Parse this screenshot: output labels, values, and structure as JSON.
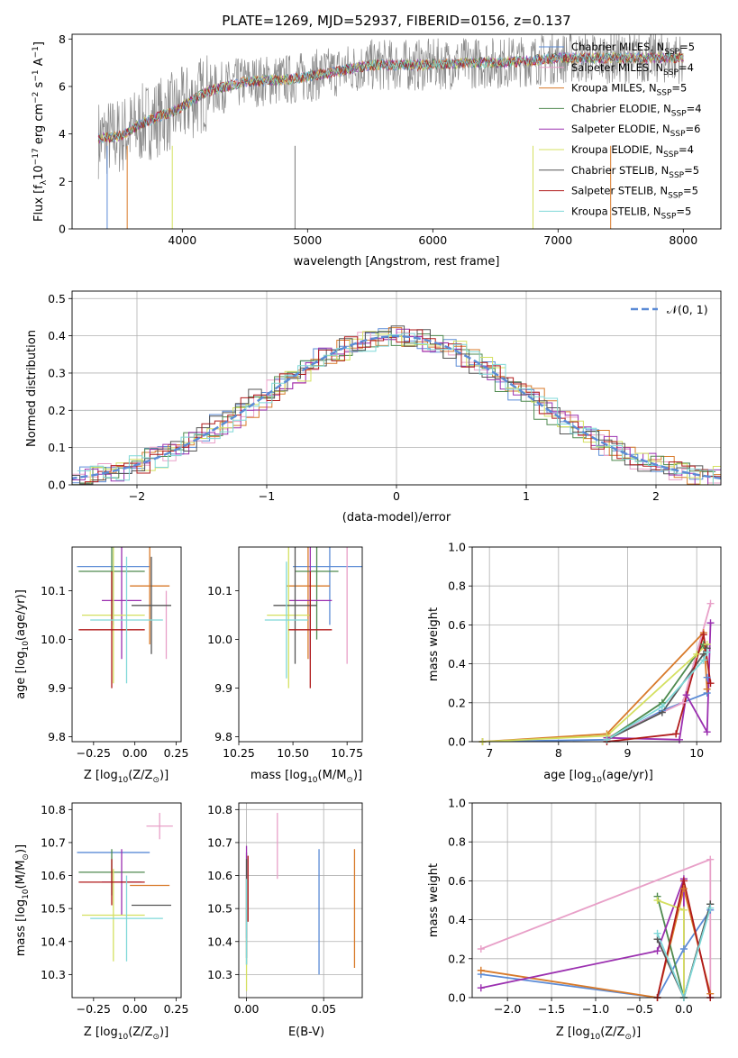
{
  "figure_title": "PLATE=1269, MJD=52937, FIBERID=0156, z=0.137",
  "legend_series": [
    {
      "name": "Chabrier MILES, N",
      "sub": "SSP",
      "tail": "=5",
      "color": "#5b8bd6"
    },
    {
      "name": "Salpeter MILES, N",
      "sub": "SSP",
      "tail": "=4",
      "color": "#e8a0c8"
    },
    {
      "name": "Kroupa MILES, N",
      "sub": "SSP",
      "tail": "=5",
      "color": "#d87a2a"
    },
    {
      "name": "Chabrier ELODIE, N",
      "sub": "SSP",
      "tail": "=4",
      "color": "#4f8a4f"
    },
    {
      "name": "Salpeter ELODIE, N",
      "sub": "SSP",
      "tail": "=6",
      "color": "#9b30b0"
    },
    {
      "name": "Kroupa ELODIE, N",
      "sub": "SSP",
      "tail": "=4",
      "color": "#d4e060"
    },
    {
      "name": "Chabrier STELIB, N",
      "sub": "SSP",
      "tail": "=5",
      "color": "#555555"
    },
    {
      "name": "Salpeter STELIB, N",
      "sub": "SSP",
      "tail": "=5",
      "color": "#b01a1a"
    },
    {
      "name": "Kroupa STELIB, N",
      "sub": "SSP",
      "tail": "=5",
      "color": "#7fd8d8"
    }
  ],
  "chart_data": [
    {
      "id": "spectrum",
      "type": "line",
      "xlabel": "wavelength [Angstrom, rest frame]",
      "ylabel": "Flux [f",
      "ylabel_sub": "λ",
      "ylabel_rest": "10",
      "ylabel_sup1": "−17",
      "ylabel_mid": " erg cm",
      "ylabel_sup2": "−2",
      "ylabel_mid2": " s",
      "ylabel_sup3": "−1",
      "ylabel_end": " A",
      "ylabel_sup4": "−1",
      "ylabel_close": "]",
      "xlim": [
        3120,
        8300
      ],
      "ylim": [
        0,
        8.2
      ],
      "xticks": [
        "4000",
        "5000",
        "6000",
        "7000",
        "8000"
      ],
      "xtick_values": [
        4000,
        5000,
        6000,
        7000,
        8000
      ],
      "yticks": [
        "0",
        "2",
        "4",
        "6",
        "8"
      ],
      "ytick_values": [
        0,
        2,
        4,
        6,
        8
      ],
      "series_outline": {
        "x": [
          3330,
          3500,
          3700,
          3950,
          4200,
          4500,
          4860,
          5200,
          5500,
          5900,
          6300,
          6560,
          7000,
          7400,
          7800,
          8000
        ],
        "y": [
          3.8,
          3.9,
          4.5,
          5.0,
          5.8,
          6.2,
          6.3,
          6.6,
          6.9,
          6.9,
          7.0,
          7.0,
          7.2,
          7.2,
          7.2,
          7.2
        ]
      }
    },
    {
      "id": "residuals",
      "type": "line",
      "xlabel": "(data-model)/error",
      "ylabel": "Normed distribution",
      "legend": "𝒩(0, 1)",
      "xlim": [
        -2.5,
        2.5
      ],
      "ylim": [
        0,
        0.52
      ],
      "xticks": [
        "−2",
        "−1",
        "0",
        "1",
        "2"
      ],
      "xtick_values": [
        -2,
        -1,
        0,
        1,
        2
      ],
      "yticks": [
        "0.0",
        "0.1",
        "0.2",
        "0.3",
        "0.4",
        "0.5"
      ],
      "ytick_values": [
        0,
        0.1,
        0.2,
        0.3,
        0.4,
        0.5
      ],
      "grid": true,
      "gaussian": {
        "mean": 0,
        "sigma": 1
      }
    },
    {
      "id": "age-vs-Z",
      "type": "scatter",
      "xlabel": "Z [log",
      "xlabel_sub": "10",
      "xlabel_rest": "(Z/Z",
      "xlabel_sub2": "⊙",
      "xlabel_end": ")]",
      "ylabel": "age  [log",
      "ylabel_sub": "10",
      "ylabel_rest": "(age/yr)]",
      "xlim": [
        -0.38,
        0.28
      ],
      "ylim": [
        9.79,
        10.19
      ],
      "xticks": [
        "−0.25",
        "0.00",
        "0.25"
      ],
      "xtick_values": [
        -0.25,
        0,
        0.25
      ],
      "yticks": [
        "9.8",
        "9.9",
        "10.0",
        "10.1"
      ],
      "ytick_values": [
        9.8,
        9.9,
        10.0,
        10.1
      ],
      "points": [
        {
          "x": -0.13,
          "y": 10.15,
          "xerr": 0.22,
          "yerr": 0.12,
          "color": "#5b8bd6"
        },
        {
          "x": 0.19,
          "y": 10.03,
          "xerr": 0.0,
          "yerr": 0.07,
          "color": "#e8a0c8"
        },
        {
          "x": 0.09,
          "y": 10.11,
          "xerr": 0.12,
          "yerr": 0.12,
          "color": "#d87a2a"
        },
        {
          "x": -0.14,
          "y": 10.14,
          "xerr": 0.2,
          "yerr": 0.1,
          "color": "#4f8a4f"
        },
        {
          "x": -0.08,
          "y": 10.08,
          "xerr": 0.12,
          "yerr": 0.12,
          "color": "#9b30b0"
        },
        {
          "x": -0.13,
          "y": 10.05,
          "xerr": 0.19,
          "yerr": 0.14,
          "color": "#d4e060"
        },
        {
          "x": 0.1,
          "y": 10.07,
          "xerr": 0.12,
          "yerr": 0.1,
          "color": "#555555"
        },
        {
          "x": -0.14,
          "y": 10.02,
          "xerr": 0.2,
          "yerr": 0.12,
          "color": "#b01a1a"
        },
        {
          "x": -0.05,
          "y": 10.04,
          "xerr": 0.22,
          "yerr": 0.13,
          "color": "#7fd8d8"
        }
      ]
    },
    {
      "id": "age-vs-mass",
      "type": "scatter",
      "xlabel": "mass [log",
      "xlabel_sub": "10",
      "xlabel_rest": "(M/M",
      "xlabel_sub2": "⊙",
      "xlabel_end": ")]",
      "xlim": [
        10.25,
        10.82
      ],
      "ylim": [
        9.79,
        10.19
      ],
      "xticks": [
        "10.25",
        "10.50",
        "10.75"
      ],
      "xtick_values": [
        10.25,
        10.5,
        10.75
      ],
      "yticks": [
        "9.8",
        "9.9",
        "10.0",
        "10.1"
      ],
      "ytick_values": [
        9.8,
        9.9,
        10.0,
        10.1
      ],
      "points": [
        {
          "x": 10.67,
          "y": 10.15,
          "xerr": 0.17,
          "yerr": 0.12,
          "color": "#5b8bd6"
        },
        {
          "x": 10.75,
          "y": 10.1,
          "xerr": 0.0,
          "yerr": 0.15,
          "color": "#e8a0c8"
        },
        {
          "x": 10.57,
          "y": 10.11,
          "xerr": 0.1,
          "yerr": 0.15,
          "color": "#d87a2a"
        },
        {
          "x": 10.61,
          "y": 10.14,
          "xerr": 0.1,
          "yerr": 0.14,
          "color": "#4f8a4f"
        },
        {
          "x": 10.58,
          "y": 10.08,
          "xerr": 0.1,
          "yerr": 0.12,
          "color": "#9b30b0"
        },
        {
          "x": 10.48,
          "y": 10.05,
          "xerr": 0.1,
          "yerr": 0.15,
          "color": "#d4e060"
        },
        {
          "x": 10.51,
          "y": 10.07,
          "xerr": 0.1,
          "yerr": 0.12,
          "color": "#555555"
        },
        {
          "x": 10.58,
          "y": 10.02,
          "xerr": 0.1,
          "yerr": 0.12,
          "color": "#b01a1a"
        },
        {
          "x": 10.47,
          "y": 10.04,
          "xerr": 0.1,
          "yerr": 0.12,
          "color": "#7fd8d8"
        }
      ]
    },
    {
      "id": "massweight-vs-age",
      "type": "line",
      "xlabel": "age  [log",
      "xlabel_sub": "10",
      "xlabel_rest": "(age/yr)]",
      "ylabel": "mass weight",
      "xlim": [
        6.75,
        10.35
      ],
      "ylim": [
        0,
        1.0
      ],
      "xticks": [
        "7",
        "8",
        "9",
        "10"
      ],
      "xtick_values": [
        7,
        8,
        9,
        10
      ],
      "yticks": [
        "0.0",
        "0.2",
        "0.4",
        "0.6",
        "0.8",
        "1.0"
      ],
      "ytick_values": [
        0,
        0.2,
        0.4,
        0.6,
        0.8,
        1.0
      ],
      "grid": true,
      "series": [
        {
          "color": "#5b8bd6",
          "x": [
            6.9,
            8.7,
            9.5,
            10.15,
            10.15
          ],
          "y": [
            0.0,
            0.01,
            0.16,
            0.25,
            0.33
          ]
        },
        {
          "color": "#e8a0c8",
          "x": [
            8.7,
            9.8,
            10.2
          ],
          "y": [
            0.02,
            0.2,
            0.71
          ]
        },
        {
          "color": "#d87a2a",
          "x": [
            6.9,
            8.7,
            10.1,
            10.15
          ],
          "y": [
            0.0,
            0.04,
            0.56,
            0.27
          ]
        },
        {
          "color": "#4f8a4f",
          "x": [
            8.7,
            9.5,
            10.1,
            10.15
          ],
          "y": [
            0.01,
            0.2,
            0.5,
            0.48
          ]
        },
        {
          "color": "#9b30b0",
          "x": [
            8.7,
            9.75,
            9.85,
            10.15,
            10.2
          ],
          "y": [
            0.02,
            0.01,
            0.24,
            0.05,
            0.61
          ]
        },
        {
          "color": "#d4e060",
          "x": [
            6.9,
            8.7,
            10.0,
            10.15
          ],
          "y": [
            0.0,
            0.03,
            0.45,
            0.5
          ]
        },
        {
          "color": "#555555",
          "x": [
            8.7,
            9.5,
            10.1,
            10.15
          ],
          "y": [
            0.01,
            0.15,
            0.45,
            0.48
          ]
        },
        {
          "color": "#b01a1a",
          "x": [
            8.7,
            9.7,
            10.1,
            10.2
          ],
          "y": [
            0.0,
            0.04,
            0.55,
            0.3
          ]
        },
        {
          "color": "#7fd8d8",
          "x": [
            8.7,
            9.5,
            10.1,
            10.15
          ],
          "y": [
            0.01,
            0.18,
            0.42,
            0.46
          ]
        }
      ]
    },
    {
      "id": "mass-vs-Z",
      "type": "scatter",
      "xlabel": "Z [log",
      "xlabel_sub": "10",
      "xlabel_rest": "(Z/Z",
      "xlabel_sub2": "⊙",
      "xlabel_end": ")]",
      "ylabel": "mass [log",
      "ylabel_sub": "10",
      "ylabel_rest": "(M/M",
      "ylabel_sub2": "⊙",
      "ylabel_end": ")]",
      "xlim": [
        -0.38,
        0.28
      ],
      "ylim": [
        10.23,
        10.82
      ],
      "xticks": [
        "−0.25",
        "0.00",
        "0.25"
      ],
      "xtick_values": [
        -0.25,
        0,
        0.25
      ],
      "yticks": [
        "10.3",
        "10.4",
        "10.5",
        "10.6",
        "10.7",
        "10.8"
      ],
      "ytick_values": [
        10.3,
        10.4,
        10.5,
        10.6,
        10.7,
        10.8
      ],
      "points": [
        {
          "x": -0.13,
          "y": 10.67,
          "xerr": 0.22,
          "yerr": 0.0,
          "color": "#5b8bd6"
        },
        {
          "x": 0.15,
          "y": 10.75,
          "xerr": 0.08,
          "yerr": 0.04,
          "color": "#e8a0c8"
        },
        {
          "x": 0.09,
          "y": 10.57,
          "xerr": 0.12,
          "yerr": 0.0,
          "color": "#d87a2a"
        },
        {
          "x": -0.14,
          "y": 10.61,
          "xerr": 0.2,
          "yerr": 0.07,
          "color": "#4f8a4f"
        },
        {
          "x": -0.08,
          "y": 10.58,
          "xerr": 0.12,
          "yerr": 0.1,
          "color": "#9b30b0"
        },
        {
          "x": -0.13,
          "y": 10.48,
          "xerr": 0.19,
          "yerr": 0.14,
          "color": "#d4e060"
        },
        {
          "x": 0.1,
          "y": 10.51,
          "xerr": 0.12,
          "yerr": 0.0,
          "color": "#555555"
        },
        {
          "x": -0.14,
          "y": 10.58,
          "xerr": 0.2,
          "yerr": 0.07,
          "color": "#b01a1a"
        },
        {
          "x": -0.05,
          "y": 10.47,
          "xerr": 0.22,
          "yerr": 0.13,
          "color": "#7fd8d8"
        }
      ]
    },
    {
      "id": "mass-vs-ebv",
      "type": "scatter",
      "xlabel": "E(B-V)",
      "xlim": [
        -0.005,
        0.075
      ],
      "ylim": [
        10.23,
        10.82
      ],
      "xticks": [
        "0.00",
        "0.05"
      ],
      "xtick_values": [
        0,
        0.05
      ],
      "yticks": [
        "10.3",
        "10.4",
        "10.5",
        "10.6",
        "10.7",
        "10.8"
      ],
      "ytick_values": [
        10.3,
        10.4,
        10.5,
        10.6,
        10.7,
        10.8
      ],
      "points": [
        {
          "x": 0.047,
          "y": 10.49,
          "xerr": 0,
          "yerr": 0.19,
          "color": "#5b8bd6"
        },
        {
          "x": 0.02,
          "y": 10.69,
          "xerr": 0,
          "yerr": 0.1,
          "color": "#e8a0c8"
        },
        {
          "x": 0.07,
          "y": 10.5,
          "xerr": 0,
          "yerr": 0.18,
          "color": "#d87a2a"
        },
        {
          "x": 0.0,
          "y": 10.5,
          "xerr": 0,
          "yerr": 0.17,
          "color": "#4f8a4f"
        },
        {
          "x": 0.0,
          "y": 10.55,
          "xerr": 0,
          "yerr": 0.14,
          "color": "#9b30b0"
        },
        {
          "x": 0.0,
          "y": 10.42,
          "xerr": 0,
          "yerr": 0.17,
          "color": "#d4e060"
        },
        {
          "x": 0.0,
          "y": 10.5,
          "xerr": 0,
          "yerr": 0.15,
          "color": "#555555"
        },
        {
          "x": 0.001,
          "y": 10.56,
          "xerr": 0,
          "yerr": 0.1,
          "color": "#b01a1a"
        },
        {
          "x": 0.0,
          "y": 10.46,
          "xerr": 0,
          "yerr": 0.13,
          "color": "#7fd8d8"
        }
      ]
    },
    {
      "id": "massweight-vs-Z",
      "type": "line",
      "xlabel": "Z [log",
      "xlabel_sub": "10",
      "xlabel_rest": "(Z/Z",
      "xlabel_sub2": "⊙",
      "xlabel_end": ")]",
      "ylabel": "mass weight",
      "xlim": [
        -2.4,
        0.42
      ],
      "ylim": [
        0,
        1.0
      ],
      "xticks": [
        "−2.0",
        "−1.5",
        "−1.0",
        "−0.5",
        "0.0"
      ],
      "xtick_values": [
        -2.0,
        -1.5,
        -1.0,
        -0.5,
        0.0
      ],
      "yticks": [
        "0.0",
        "0.2",
        "0.4",
        "0.6",
        "0.8",
        "1.0"
      ],
      "ytick_values": [
        0,
        0.2,
        0.4,
        0.6,
        0.8,
        1.0
      ],
      "grid": true,
      "series": [
        {
          "color": "#5b8bd6",
          "x": [
            -2.3,
            -0.3,
            0.0,
            0.3
          ],
          "y": [
            0.12,
            0.0,
            0.25,
            0.45
          ]
        },
        {
          "color": "#e8a0c8",
          "x": [
            -2.3,
            0.3,
            0.3
          ],
          "y": [
            0.25,
            0.71,
            0.0
          ]
        },
        {
          "color": "#d87a2a",
          "x": [
            -2.3,
            -0.3,
            0.0,
            0.3
          ],
          "y": [
            0.14,
            0.0,
            0.56,
            0.02
          ]
        },
        {
          "color": "#4f8a4f",
          "x": [
            -0.3,
            0.0,
            0.3
          ],
          "y": [
            0.52,
            0.0,
            0.48
          ]
        },
        {
          "color": "#9b30b0",
          "x": [
            -2.3,
            -0.3,
            0.0,
            0.0
          ],
          "y": [
            0.05,
            0.24,
            0.61,
            0.0
          ]
        },
        {
          "color": "#d4e060",
          "x": [
            -0.3,
            0.0,
            0.0
          ],
          "y": [
            0.5,
            0.45,
            0.0
          ]
        },
        {
          "color": "#555555",
          "x": [
            -0.3,
            0.0,
            0.3
          ],
          "y": [
            0.3,
            0.0,
            0.48
          ]
        },
        {
          "color": "#b01a1a",
          "x": [
            -0.3,
            0.0,
            0.3
          ],
          "y": [
            0.0,
            0.6,
            0.0
          ]
        },
        {
          "color": "#7fd8d8",
          "x": [
            -0.3,
            0.0,
            0.3
          ],
          "y": [
            0.33,
            0.0,
            0.46
          ]
        }
      ]
    }
  ]
}
